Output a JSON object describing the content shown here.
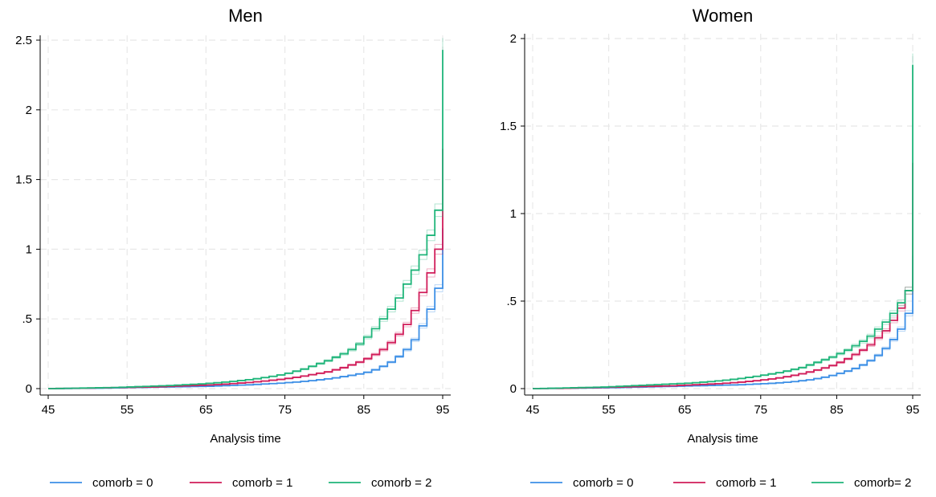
{
  "chart_data": [
    {
      "type": "line",
      "title": "Men",
      "xlabel": "Analysis time",
      "ylabel": "",
      "xlim": [
        45,
        95
      ],
      "ylim": [
        0,
        2.5
      ],
      "x_ticks": [
        45,
        55,
        65,
        75,
        85,
        95
      ],
      "y_ticks": [
        0,
        0.5,
        1,
        1.5,
        2,
        2.5
      ],
      "y_tick_labels": [
        "0",
        ".5",
        "1",
        "1.5",
        "2",
        "2.5"
      ],
      "grid": true,
      "legend_position": "bottom",
      "x": [
        45,
        46,
        47,
        48,
        49,
        50,
        51,
        52,
        53,
        54,
        55,
        56,
        57,
        58,
        59,
        60,
        61,
        62,
        63,
        64,
        65,
        66,
        67,
        68,
        69,
        70,
        71,
        72,
        73,
        74,
        75,
        76,
        77,
        78,
        79,
        80,
        81,
        82,
        83,
        84,
        85,
        86,
        87,
        88,
        89,
        90,
        91,
        92,
        93,
        94,
        95
      ],
      "series": [
        {
          "name": "comorb = 0",
          "color": "#3c8fe6",
          "values": [
            0,
            0.0005,
            0.001,
            0.0015,
            0.002,
            0.0025,
            0.003,
            0.004,
            0.005,
            0.006,
            0.007,
            0.008,
            0.009,
            0.01,
            0.011,
            0.012,
            0.013,
            0.014,
            0.015,
            0.016,
            0.017,
            0.019,
            0.021,
            0.023,
            0.025,
            0.027,
            0.03,
            0.033,
            0.036,
            0.039,
            0.043,
            0.047,
            0.052,
            0.057,
            0.063,
            0.07,
            0.077,
            0.086,
            0.095,
            0.105,
            0.117,
            0.135,
            0.16,
            0.19,
            0.23,
            0.28,
            0.35,
            0.45,
            0.57,
            0.72,
            0.87
          ],
          "end_value": 1.15
        },
        {
          "name": "comorb = 1",
          "color": "#d11d5a",
          "values": [
            0,
            0.001,
            0.0015,
            0.002,
            0.003,
            0.004,
            0.005,
            0.006,
            0.007,
            0.008,
            0.009,
            0.01,
            0.011,
            0.012,
            0.014,
            0.016,
            0.018,
            0.02,
            0.022,
            0.024,
            0.026,
            0.029,
            0.032,
            0.036,
            0.04,
            0.044,
            0.049,
            0.054,
            0.06,
            0.066,
            0.073,
            0.081,
            0.09,
            0.1,
            0.11,
            0.12,
            0.135,
            0.15,
            0.17,
            0.19,
            0.215,
            0.245,
            0.28,
            0.33,
            0.39,
            0.46,
            0.56,
            0.69,
            0.83,
            1.0,
            1.17
          ],
          "end_value": 1.72
        },
        {
          "name": "comorb = 2",
          "color": "#1fb57a",
          "values": [
            0,
            0.001,
            0.002,
            0.003,
            0.004,
            0.005,
            0.006,
            0.007,
            0.008,
            0.01,
            0.012,
            0.014,
            0.016,
            0.018,
            0.02,
            0.022,
            0.025,
            0.028,
            0.031,
            0.034,
            0.038,
            0.042,
            0.047,
            0.052,
            0.058,
            0.064,
            0.071,
            0.079,
            0.088,
            0.098,
            0.11,
            0.125,
            0.14,
            0.16,
            0.18,
            0.2,
            0.225,
            0.25,
            0.28,
            0.32,
            0.37,
            0.43,
            0.5,
            0.57,
            0.65,
            0.75,
            0.85,
            0.96,
            1.1,
            1.28,
            1.5
          ],
          "end_value": 2.43
        }
      ]
    },
    {
      "type": "line",
      "title": "Women",
      "xlabel": "Analysis time",
      "ylabel": "",
      "xlim": [
        45,
        95
      ],
      "ylim": [
        0,
        2
      ],
      "x_ticks": [
        45,
        55,
        65,
        75,
        85,
        95
      ],
      "y_ticks": [
        0,
        0.5,
        1,
        1.5,
        2
      ],
      "y_tick_labels": [
        "0",
        ".5",
        "1",
        "1.5",
        "2"
      ],
      "grid": true,
      "legend_position": "bottom",
      "x": [
        45,
        46,
        47,
        48,
        49,
        50,
        51,
        52,
        53,
        54,
        55,
        56,
        57,
        58,
        59,
        60,
        61,
        62,
        63,
        64,
        65,
        66,
        67,
        68,
        69,
        70,
        71,
        72,
        73,
        74,
        75,
        76,
        77,
        78,
        79,
        80,
        81,
        82,
        83,
        84,
        85,
        86,
        87,
        88,
        89,
        90,
        91,
        92,
        93,
        94,
        95
      ],
      "series": [
        {
          "name": "comorb = 0",
          "color": "#3c8fe6",
          "values": [
            0,
            0.0005,
            0.001,
            0.0015,
            0.002,
            0.0025,
            0.003,
            0.0035,
            0.004,
            0.0045,
            0.005,
            0.006,
            0.007,
            0.008,
            0.009,
            0.01,
            0.011,
            0.012,
            0.013,
            0.014,
            0.015,
            0.016,
            0.017,
            0.018,
            0.019,
            0.02,
            0.021,
            0.022,
            0.024,
            0.026,
            0.028,
            0.03,
            0.033,
            0.036,
            0.04,
            0.045,
            0.05,
            0.057,
            0.065,
            0.075,
            0.087,
            0.1,
            0.115,
            0.135,
            0.16,
            0.19,
            0.23,
            0.28,
            0.34,
            0.43,
            0.55
          ],
          "end_value": 0.76
        },
        {
          "name": "comorb = 1",
          "color": "#d11d5a",
          "values": [
            0,
            0.0005,
            0.001,
            0.0015,
            0.002,
            0.003,
            0.004,
            0.005,
            0.006,
            0.007,
            0.008,
            0.009,
            0.01,
            0.011,
            0.012,
            0.013,
            0.014,
            0.015,
            0.016,
            0.018,
            0.02,
            0.022,
            0.024,
            0.026,
            0.028,
            0.031,
            0.034,
            0.037,
            0.041,
            0.045,
            0.05,
            0.055,
            0.061,
            0.068,
            0.076,
            0.085,
            0.095,
            0.106,
            0.118,
            0.132,
            0.15,
            0.17,
            0.195,
            0.22,
            0.25,
            0.29,
            0.33,
            0.39,
            0.46,
            0.56,
            0.68
          ],
          "end_value": 1.29
        },
        {
          "name": "comorb= 2",
          "color": "#1fb57a",
          "values": [
            0,
            0.001,
            0.002,
            0.003,
            0.004,
            0.005,
            0.006,
            0.007,
            0.008,
            0.009,
            0.011,
            0.013,
            0.015,
            0.017,
            0.019,
            0.021,
            0.023,
            0.025,
            0.027,
            0.029,
            0.031,
            0.034,
            0.037,
            0.04,
            0.044,
            0.048,
            0.053,
            0.058,
            0.064,
            0.07,
            0.077,
            0.084,
            0.091,
            0.1,
            0.11,
            0.12,
            0.135,
            0.15,
            0.165,
            0.18,
            0.2,
            0.22,
            0.245,
            0.27,
            0.3,
            0.34,
            0.38,
            0.43,
            0.49,
            0.56,
            0.65
          ],
          "end_value": 1.85
        }
      ]
    }
  ]
}
